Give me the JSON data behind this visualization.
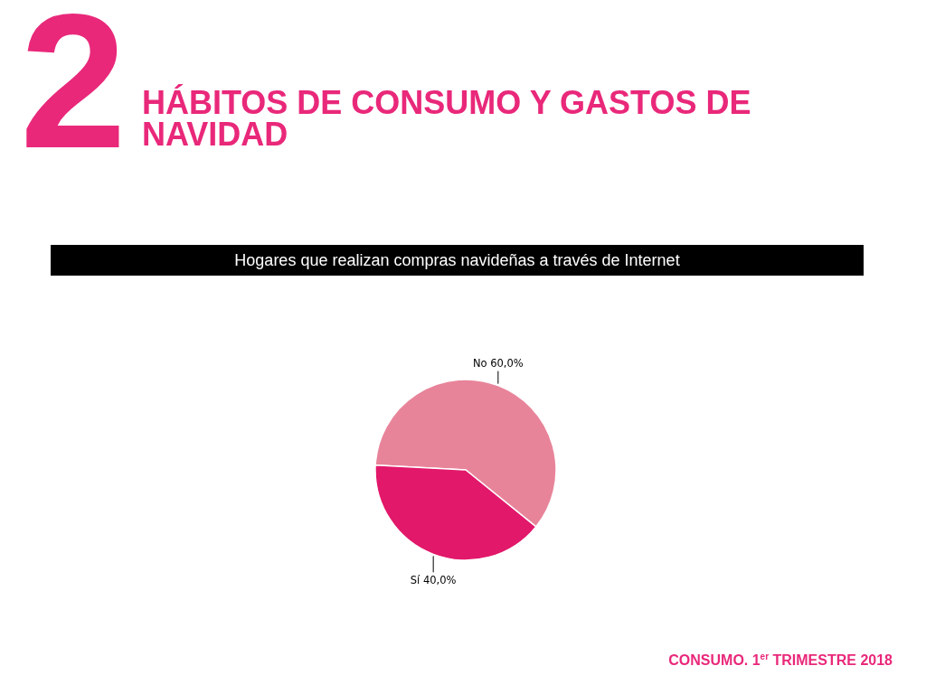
{
  "chart_data": {
    "type": "pie",
    "title": "HÁBITOS DE CONSUMO Y GASTOS DE NAVIDAD",
    "subtitle": "Hogares que realizan compras navideñas a través de Internet",
    "categories": [
      "No",
      "Sí"
    ],
    "values": [
      60,
      40
    ],
    "colors": [
      "#e8849a",
      "#e2186a"
    ],
    "value_labels": [
      "60,0%",
      "40,0%"
    ],
    "annotations": [
      "2",
      "CONSUMO. 1$^{er}$ TRIMESTRE 2018"
    ]
  }
}
